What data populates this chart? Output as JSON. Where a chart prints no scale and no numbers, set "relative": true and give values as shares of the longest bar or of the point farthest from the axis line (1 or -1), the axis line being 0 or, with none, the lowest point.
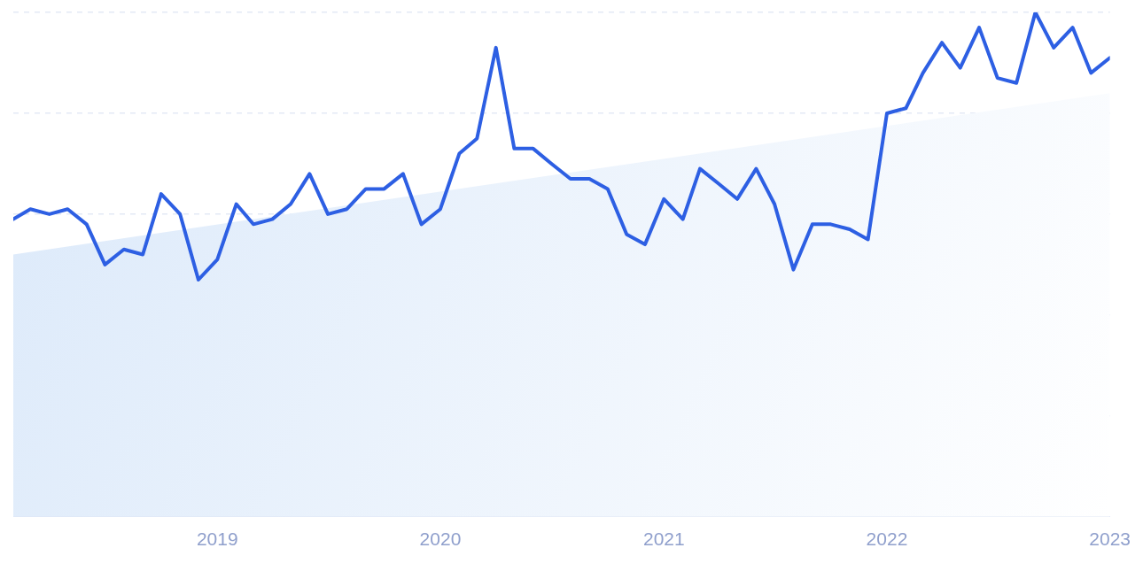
{
  "chart_data": {
    "type": "line",
    "relative": true,
    "grid": "y",
    "line_style": "solid",
    "marker": "none",
    "x": [
      "2018-02",
      "2018-03",
      "2018-04",
      "2018-05",
      "2018-06",
      "2018-07",
      "2018-08",
      "2018-09",
      "2018-10",
      "2018-11",
      "2018-12",
      "2019-01",
      "2019-02",
      "2019-03",
      "2019-04",
      "2019-05",
      "2019-06",
      "2019-07",
      "2019-08",
      "2019-09",
      "2019-10",
      "2019-11",
      "2019-12",
      "2020-01",
      "2020-02",
      "2020-03",
      "2020-04",
      "2020-05",
      "2020-06",
      "2020-07",
      "2020-08",
      "2020-09",
      "2020-10",
      "2020-11",
      "2020-12",
      "2021-01",
      "2021-02",
      "2021-03",
      "2021-04",
      "2021-05",
      "2021-06",
      "2021-07",
      "2021-08",
      "2021-09",
      "2021-10",
      "2021-11",
      "2021-12",
      "2022-01",
      "2022-02",
      "2022-03",
      "2022-04",
      "2022-05",
      "2022-06",
      "2022-07",
      "2022-08",
      "2022-09",
      "2022-10",
      "2022-11",
      "2022-12",
      "2023-01"
    ],
    "xlim": [
      "2018-02",
      "2023-01"
    ],
    "xticks": [
      "2019",
      "2020",
      "2021",
      "2022",
      "2023"
    ],
    "series": [
      {
        "type": "area",
        "color": "#dbe9fa",
        "x": [
          "2018-02",
          "2023-01"
        ],
        "values": [
          0.52,
          0.84
        ]
      },
      {
        "type": "line",
        "color": "#2d5fe3",
        "values": [
          0.59,
          0.61,
          0.6,
          0.61,
          0.58,
          0.5,
          0.53,
          0.52,
          0.64,
          0.6,
          0.47,
          0.51,
          0.62,
          0.58,
          0.59,
          0.62,
          0.68,
          0.6,
          0.61,
          0.65,
          0.65,
          0.68,
          0.58,
          0.61,
          0.72,
          0.75,
          0.93,
          0.73,
          0.73,
          0.7,
          0.67,
          0.67,
          0.65,
          0.56,
          0.54,
          0.63,
          0.59,
          0.69,
          0.66,
          0.63,
          0.69,
          0.62,
          0.49,
          0.58,
          0.58,
          0.57,
          0.55,
          0.8,
          0.81,
          0.88,
          0.94,
          0.89,
          0.97,
          0.87,
          0.86,
          1,
          0.93,
          0.97,
          0.88,
          0.91
        ]
      }
    ]
  }
}
